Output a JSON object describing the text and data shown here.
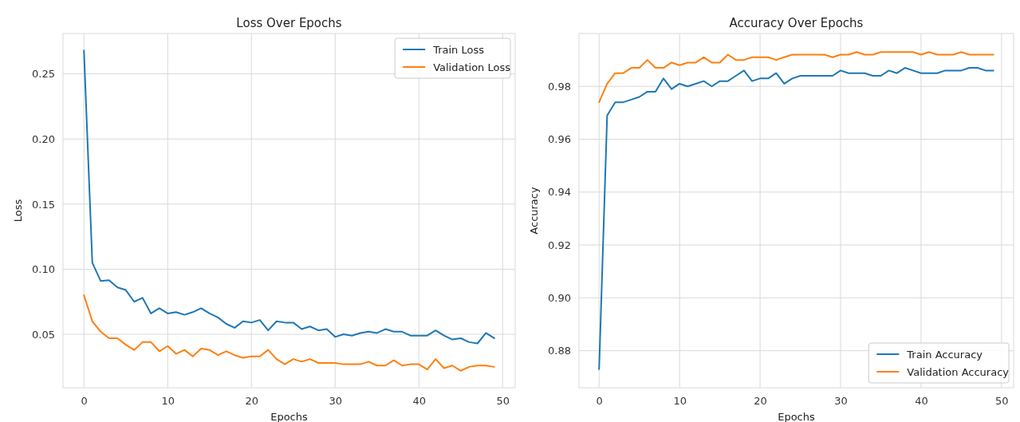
{
  "chart_data": [
    {
      "type": "line",
      "title": "Loss Over Epochs",
      "xlabel": "Epochs",
      "ylabel": "Loss",
      "x": [
        0,
        1,
        2,
        3,
        4,
        5,
        6,
        7,
        8,
        9,
        10,
        11,
        12,
        13,
        14,
        15,
        16,
        17,
        18,
        19,
        20,
        21,
        22,
        23,
        24,
        25,
        26,
        27,
        28,
        29,
        30,
        31,
        32,
        33,
        34,
        35,
        36,
        37,
        38,
        39,
        40,
        41,
        42,
        43,
        44,
        45,
        46,
        47,
        48,
        49
      ],
      "series": [
        {
          "name": "Train Loss",
          "color": "#1f77b4",
          "values": [
            0.268,
            0.105,
            0.091,
            0.0915,
            0.086,
            0.084,
            0.075,
            0.078,
            0.066,
            0.07,
            0.066,
            0.067,
            0.065,
            0.067,
            0.07,
            0.066,
            0.063,
            0.058,
            0.055,
            0.06,
            0.059,
            0.061,
            0.053,
            0.06,
            0.059,
            0.059,
            0.054,
            0.056,
            0.053,
            0.054,
            0.048,
            0.05,
            0.049,
            0.051,
            0.052,
            0.051,
            0.054,
            0.052,
            0.052,
            0.049,
            0.049,
            0.049,
            0.053,
            0.049,
            0.046,
            0.047,
            0.044,
            0.043,
            0.051,
            0.047
          ]
        },
        {
          "name": "Validation Loss",
          "color": "#ff7f0e",
          "values": [
            0.08,
            0.06,
            0.052,
            0.047,
            0.047,
            0.042,
            0.038,
            0.044,
            0.044,
            0.037,
            0.041,
            0.035,
            0.038,
            0.033,
            0.039,
            0.038,
            0.034,
            0.037,
            0.034,
            0.032,
            0.033,
            0.033,
            0.038,
            0.031,
            0.027,
            0.031,
            0.029,
            0.031,
            0.028,
            0.028,
            0.028,
            0.027,
            0.027,
            0.027,
            0.029,
            0.026,
            0.026,
            0.03,
            0.026,
            0.027,
            0.027,
            0.023,
            0.031,
            0.024,
            0.026,
            0.022,
            0.025,
            0.026,
            0.026,
            0.025
          ]
        }
      ],
      "xlim": [
        -2.5,
        51.5
      ],
      "xticks": [
        0,
        10,
        20,
        30,
        40,
        50
      ],
      "ylim": [
        0.009,
        0.281
      ],
      "yticks": [
        {
          "value": 0.05,
          "label": "0.05"
        },
        {
          "value": 0.1,
          "label": "0.10"
        },
        {
          "value": 0.15,
          "label": "0.15"
        },
        {
          "value": 0.2,
          "label": "0.20"
        },
        {
          "value": 0.25,
          "label": "0.25"
        }
      ],
      "grid": true,
      "legend": "top right",
      "line_style": "solid"
    },
    {
      "type": "line",
      "title": "Accuracy Over Epochs",
      "xlabel": "Epochs",
      "ylabel": "Accuracy",
      "x": [
        0,
        1,
        2,
        3,
        4,
        5,
        6,
        7,
        8,
        9,
        10,
        11,
        12,
        13,
        14,
        15,
        16,
        17,
        18,
        19,
        20,
        21,
        22,
        23,
        24,
        25,
        26,
        27,
        28,
        29,
        30,
        31,
        32,
        33,
        34,
        35,
        36,
        37,
        38,
        39,
        40,
        41,
        42,
        43,
        44,
        45,
        46,
        47,
        48,
        49
      ],
      "series": [
        {
          "name": "Train Accuracy",
          "color": "#1f77b4",
          "values": [
            0.873,
            0.969,
            0.974,
            0.974,
            0.975,
            0.976,
            0.978,
            0.978,
            0.983,
            0.979,
            0.981,
            0.98,
            0.981,
            0.982,
            0.98,
            0.982,
            0.982,
            0.984,
            0.986,
            0.982,
            0.983,
            0.983,
            0.985,
            0.981,
            0.983,
            0.984,
            0.984,
            0.984,
            0.984,
            0.984,
            0.986,
            0.985,
            0.985,
            0.985,
            0.984,
            0.984,
            0.986,
            0.985,
            0.987,
            0.986,
            0.985,
            0.985,
            0.985,
            0.986,
            0.986,
            0.986,
            0.987,
            0.987,
            0.986,
            0.986
          ]
        },
        {
          "name": "Validation Accuracy",
          "color": "#ff7f0e",
          "values": [
            0.974,
            0.981,
            0.985,
            0.985,
            0.987,
            0.987,
            0.99,
            0.987,
            0.987,
            0.989,
            0.988,
            0.989,
            0.989,
            0.991,
            0.989,
            0.989,
            0.992,
            0.99,
            0.99,
            0.991,
            0.991,
            0.991,
            0.99,
            0.991,
            0.992,
            0.992,
            0.992,
            0.992,
            0.992,
            0.991,
            0.992,
            0.992,
            0.993,
            0.992,
            0.992,
            0.993,
            0.993,
            0.993,
            0.993,
            0.993,
            0.992,
            0.993,
            0.992,
            0.992,
            0.992,
            0.993,
            0.992,
            0.992,
            0.992,
            0.992
          ]
        }
      ],
      "xlim": [
        -2.5,
        51.5
      ],
      "xticks": [
        0,
        10,
        20,
        30,
        40,
        50
      ],
      "ylim": [
        0.866,
        1.0
      ],
      "yticks": [
        0.88,
        {
          "value": 0.9,
          "label": "0.90"
        },
        0.92,
        0.94,
        0.96,
        0.98
      ],
      "grid": true,
      "legend": "bottom right",
      "line_style": "solid"
    }
  ]
}
